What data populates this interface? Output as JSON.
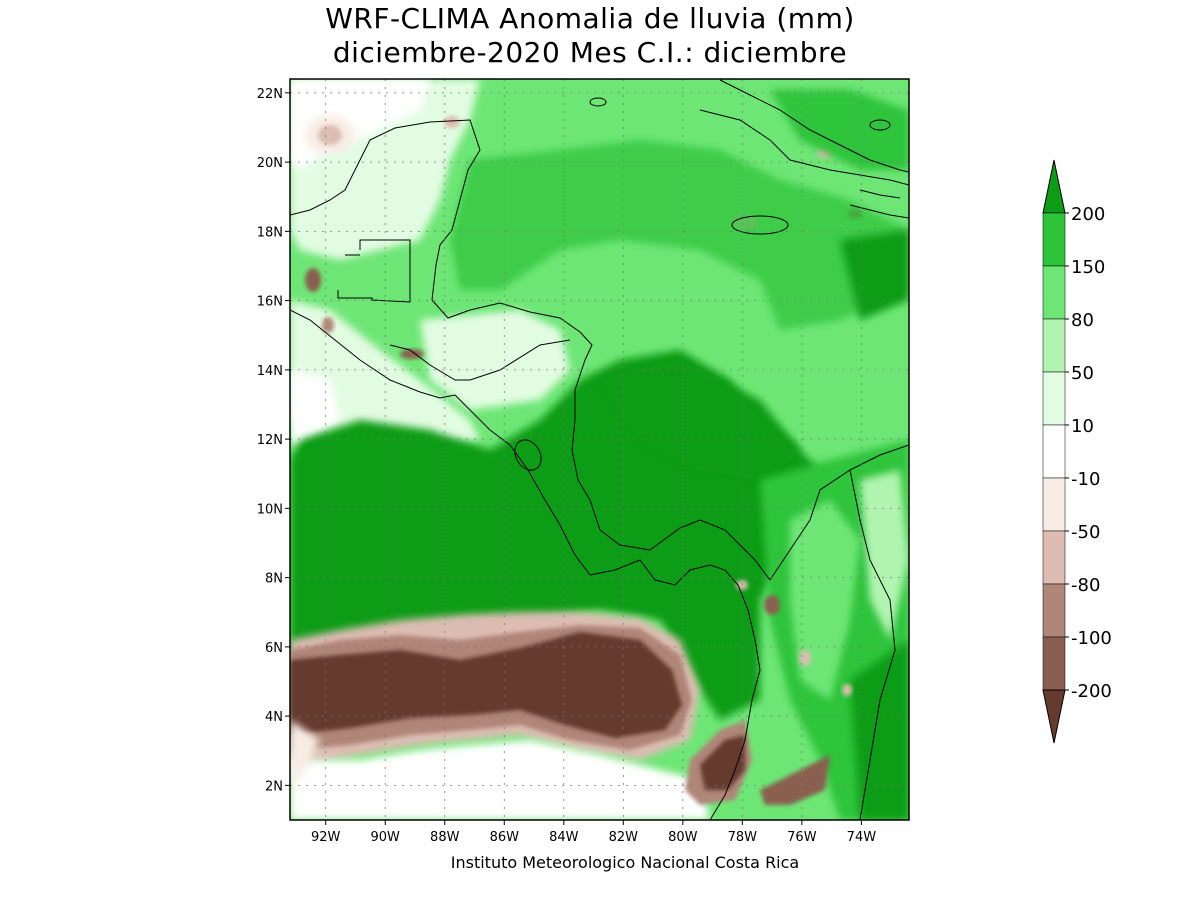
{
  "title_line1": "WRF-CLIMA Anomalia de lluvia (mm)",
  "title_line2": "diciembre-2020 Mes C.I.: diciembre",
  "credit": "Instituto Meteorologico Nacional Costa Rica",
  "map": {
    "lon_range": [
      -93.2,
      -72.4
    ],
    "lat_range": [
      1.0,
      22.4
    ],
    "lat_ticks": [
      {
        "value": 2,
        "label": "2N"
      },
      {
        "value": 4,
        "label": "4N"
      },
      {
        "value": 6,
        "label": "6N"
      },
      {
        "value": 8,
        "label": "8N"
      },
      {
        "value": 10,
        "label": "10N"
      },
      {
        "value": 12,
        "label": "12N"
      },
      {
        "value": 14,
        "label": "14N"
      },
      {
        "value": 16,
        "label": "16N"
      },
      {
        "value": 18,
        "label": "18N"
      },
      {
        "value": 20,
        "label": "20N"
      },
      {
        "value": 22,
        "label": "22N"
      }
    ],
    "lon_ticks": [
      {
        "value": -92,
        "label": "92W"
      },
      {
        "value": -90,
        "label": "90W"
      },
      {
        "value": -88,
        "label": "88W"
      },
      {
        "value": -86,
        "label": "86W"
      },
      {
        "value": -84,
        "label": "84W"
      },
      {
        "value": -82,
        "label": "82W"
      },
      {
        "value": -80,
        "label": "80W"
      },
      {
        "value": -78,
        "label": "78W"
      },
      {
        "value": -76,
        "label": "76W"
      },
      {
        "value": -74,
        "label": "74W"
      }
    ]
  },
  "legend": {
    "labels": [
      "200",
      "150",
      "80",
      "50",
      "10",
      "-10",
      "-50",
      "-80",
      "-100",
      "-200"
    ],
    "colors": [
      "#0c9c16",
      "#2ec43a",
      "#6ee676",
      "#b0f4b0",
      "#e2fce2",
      "#ffffff",
      "#f7ede5",
      "#ddbcb2",
      "#b08678",
      "#8a5e50",
      "#653b2e"
    ]
  },
  "colors": {
    "dry_dark": "#653b2e",
    "dry_mid": "#8a5e50",
    "wet_dark": "#0c9c16",
    "wet_mid": "#2ec43a",
    "wet_light": "#6ee676"
  }
}
